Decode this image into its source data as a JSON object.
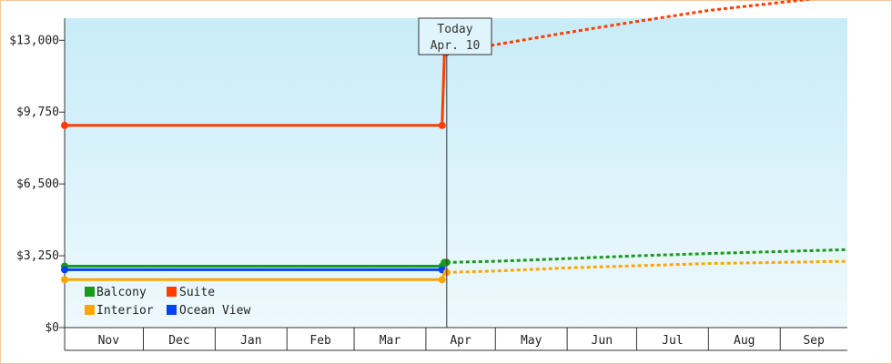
{
  "chart_data": {
    "type": "line",
    "title": "",
    "xlabel": "",
    "ylabel": "",
    "x_start": "2023-10-28",
    "x_end": "2024-09-30",
    "x_tick_labels": [
      "Nov",
      "Dec",
      "Jan",
      "Feb",
      "Mar",
      "Apr",
      "May",
      "Jun",
      "Jul",
      "Aug",
      "Sep"
    ],
    "month_boundaries": [
      "2023-11-01",
      "2023-12-01",
      "2024-01-01",
      "2024-02-01",
      "2024-03-01",
      "2024-04-01",
      "2024-05-01",
      "2024-06-01",
      "2024-07-01",
      "2024-08-01",
      "2024-09-01"
    ],
    "ylim": [
      0,
      14000
    ],
    "y_ticks": [
      0,
      3250,
      6500,
      9750,
      13000
    ],
    "y_tick_labels": [
      "$0",
      "$3,250",
      "$6,500",
      "$9,750",
      "$13,000"
    ],
    "today": {
      "line1": "Today",
      "line2": "Apr. 10",
      "date": "2024-04-10"
    },
    "legend": {
      "position": "bottom-left",
      "items": [
        {
          "label": "Balcony",
          "color": "#1a9a1a"
        },
        {
          "label": "Suite",
          "color": "#ff3d00"
        },
        {
          "label": "Interior",
          "color": "#ffa500"
        },
        {
          "label": "Ocean View",
          "color": "#0044ee"
        }
      ]
    },
    "series": [
      {
        "name": "Suite",
        "color": "#ff3d00",
        "history": [
          [
            "2023-10-28",
            9150
          ],
          [
            "2024-04-08",
            9150
          ],
          [
            "2024-04-09",
            12450
          ],
          [
            "2024-04-10",
            12450
          ]
        ],
        "forecast": [
          [
            "2024-04-10",
            12450
          ],
          [
            "2024-05-01",
            12800
          ],
          [
            "2024-06-01",
            13350
          ],
          [
            "2024-07-01",
            13850
          ],
          [
            "2024-08-01",
            14350
          ],
          [
            "2024-09-30",
            15050
          ]
        ]
      },
      {
        "name": "Balcony",
        "color": "#1a9a1a",
        "history": [
          [
            "2023-10-28",
            2780
          ],
          [
            "2024-04-08",
            2780
          ],
          [
            "2024-04-09",
            2950
          ],
          [
            "2024-04-10",
            2950
          ]
        ],
        "forecast": [
          [
            "2024-04-10",
            2950
          ],
          [
            "2024-05-01",
            3000
          ],
          [
            "2024-06-01",
            3120
          ],
          [
            "2024-07-01",
            3250
          ],
          [
            "2024-08-01",
            3350
          ],
          [
            "2024-09-30",
            3530
          ]
        ]
      },
      {
        "name": "Ocean View",
        "color": "#0044ee",
        "history": [
          [
            "2023-10-28",
            2620
          ],
          [
            "2024-04-08",
            2620
          ]
        ],
        "forecast": []
      },
      {
        "name": "Interior",
        "color": "#ffa500",
        "history": [
          [
            "2023-10-28",
            2170
          ],
          [
            "2024-04-08",
            2170
          ],
          [
            "2024-04-09",
            2500
          ],
          [
            "2024-04-10",
            2500
          ]
        ],
        "forecast": [
          [
            "2024-04-10",
            2500
          ],
          [
            "2024-05-01",
            2560
          ],
          [
            "2024-06-01",
            2700
          ],
          [
            "2024-07-01",
            2800
          ],
          [
            "2024-08-01",
            2900
          ],
          [
            "2024-09-30",
            3000
          ]
        ]
      }
    ],
    "markers": [
      {
        "series": "Suite",
        "points": [
          [
            "2023-10-28",
            9150
          ],
          [
            "2024-04-08",
            9150
          ],
          [
            "2024-04-09",
            12450
          ],
          [
            "2024-04-10",
            12450
          ]
        ]
      },
      {
        "series": "Balcony",
        "points": [
          [
            "2023-10-28",
            2780
          ],
          [
            "2024-04-08",
            2780
          ],
          [
            "2024-04-09",
            2950
          ],
          [
            "2024-04-10",
            2950
          ]
        ]
      },
      {
        "series": "Ocean View",
        "points": [
          [
            "2023-10-28",
            2620
          ],
          [
            "2024-04-08",
            2620
          ]
        ]
      },
      {
        "series": "Interior",
        "points": [
          [
            "2023-10-28",
            2170
          ],
          [
            "2024-04-08",
            2170
          ],
          [
            "2024-04-10",
            2500
          ]
        ]
      }
    ]
  }
}
